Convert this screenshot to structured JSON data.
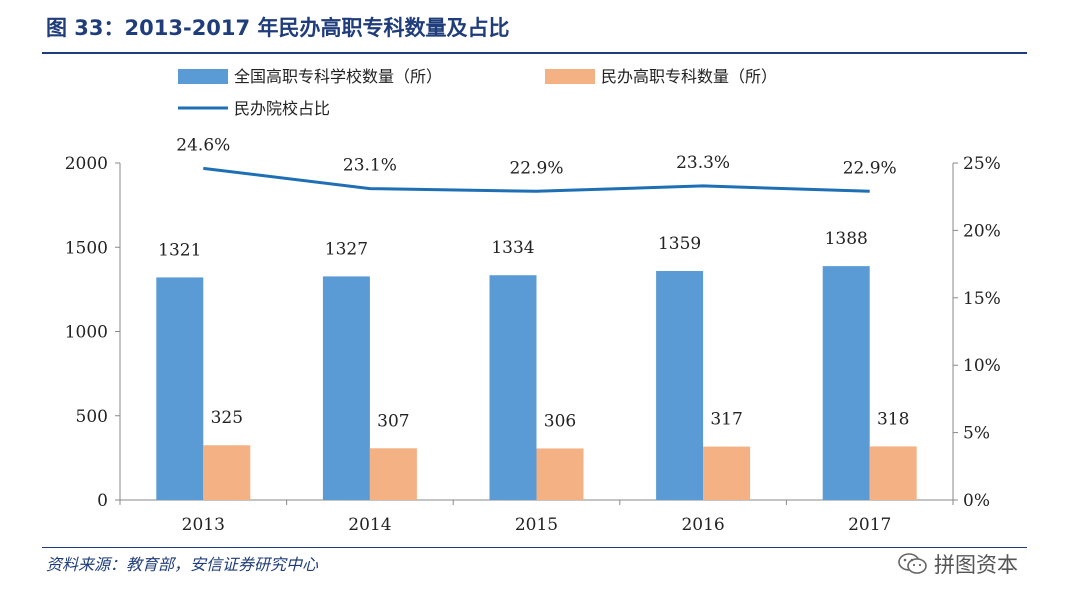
{
  "header": {
    "title": "图 33：2013-2017 年民办高职专科数量及占比"
  },
  "footer": {
    "source": "资料来源：教育部，安信证券研究中心",
    "watermark": "拼图资本"
  },
  "colors": {
    "bar_total": "#5b9bd5",
    "bar_private": "#f4b183",
    "line": "#1f6fb5",
    "title": "#1f3d7a"
  },
  "chart_data": {
    "type": "bar",
    "title": "2013-2017 年民办高职专科数量及占比",
    "categories": [
      "2013",
      "2014",
      "2015",
      "2016",
      "2017"
    ],
    "series": [
      {
        "name": "全国高职专科学校数量（所）",
        "kind": "bar",
        "axis": "left",
        "values": [
          1321,
          1327,
          1334,
          1359,
          1388
        ],
        "labels": [
          "1321",
          "1327",
          "1334",
          "1359",
          "1388"
        ]
      },
      {
        "name": "民办高职专科数量（所）",
        "kind": "bar",
        "axis": "left",
        "values": [
          325,
          307,
          306,
          317,
          318
        ],
        "labels": [
          "325",
          "307",
          "306",
          "317",
          "318"
        ]
      },
      {
        "name": "民办院校占比",
        "kind": "line",
        "axis": "right",
        "values": [
          24.6,
          23.1,
          22.9,
          23.3,
          22.9
        ],
        "labels": [
          "24.6%",
          "23.1%",
          "22.9%",
          "23.3%",
          "22.9%"
        ]
      }
    ],
    "y_left": {
      "min": 0,
      "max": 2000,
      "ticks": [
        "0",
        "500",
        "1000",
        "1500",
        "2000"
      ]
    },
    "y_right": {
      "min": 0,
      "max": 25,
      "ticks": [
        "0%",
        "5%",
        "10%",
        "15%",
        "20%",
        "25%"
      ]
    },
    "legend_position": "top"
  }
}
